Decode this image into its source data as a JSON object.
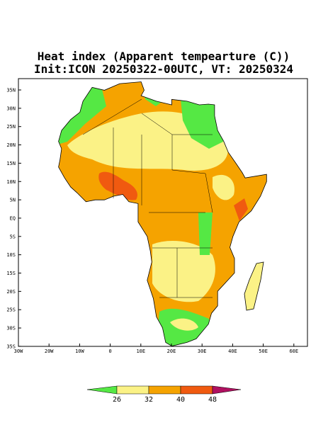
{
  "title": "Heat index (Apparent tempearture (C))",
  "subtitle": "Init:ICON 20250322-00UTC, VT: 20250324",
  "map": {
    "lat_labels": [
      "35N",
      "30N",
      "25N",
      "20N",
      "15N",
      "10N",
      "5N",
      "EQ",
      "5S",
      "10S",
      "15S",
      "20S",
      "25S",
      "30S",
      "35S"
    ],
    "lon_labels": [
      "30W",
      "20W",
      "10W",
      "0",
      "10E",
      "20E",
      "30E",
      "40E",
      "50E",
      "60E"
    ]
  },
  "colorbar": {
    "labels": [
      "26",
      "32",
      "40",
      "48"
    ]
  }
}
